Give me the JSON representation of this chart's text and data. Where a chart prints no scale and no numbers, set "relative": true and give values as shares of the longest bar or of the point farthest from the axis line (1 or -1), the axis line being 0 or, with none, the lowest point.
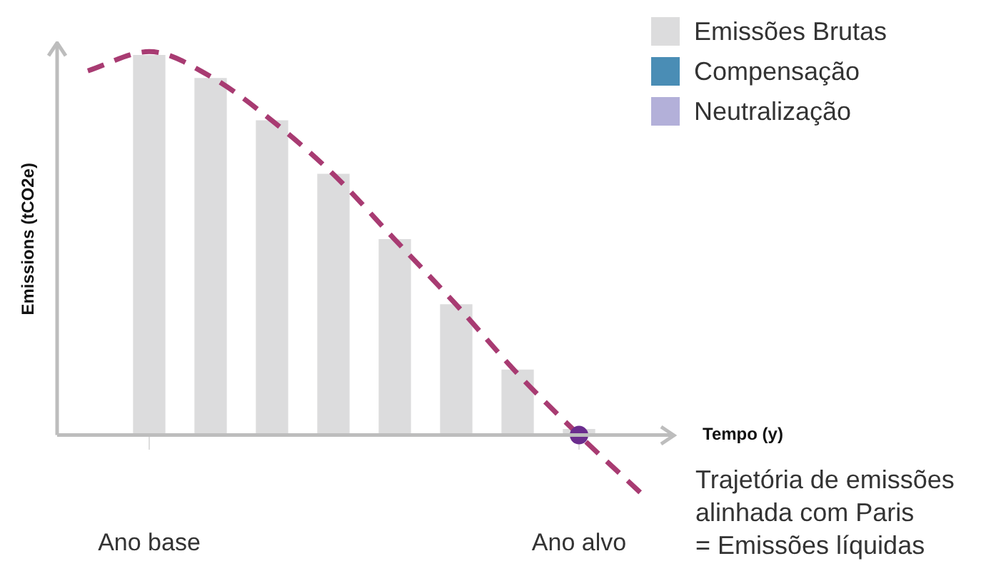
{
  "chart_data": {
    "type": "bar",
    "relative": true,
    "ylabel": "Emissions (tCO2e)",
    "xlabel": "Tempo (y)",
    "categories": [
      null,
      "Ano base",
      null,
      null,
      null,
      null,
      null,
      null,
      "Ano alvo",
      null
    ],
    "legend": "top right",
    "grid": false,
    "series": [
      {
        "name": "Emissões Brutas",
        "color": "#dcdcdd",
        "values": [
          null,
          0.99,
          0.93,
          0.82,
          0.68,
          0.51,
          0.34,
          0.17,
          0.015,
          null
        ]
      },
      {
        "name": "Compensação",
        "color": "#4a8db5",
        "values": [
          null,
          null,
          null,
          null,
          null,
          null,
          null,
          null,
          null,
          null
        ]
      },
      {
        "name": "Neutralização",
        "color": "#b3b0d9",
        "values": [
          null,
          null,
          null,
          null,
          null,
          null,
          null,
          null,
          null,
          null
        ]
      },
      {
        "type": "line",
        "color": "#a83b72",
        "line_style": "dashed",
        "marker": "none",
        "values": [
          0.95,
          1,
          0.935,
          0.82,
          0.68,
          0.51,
          0.34,
          0.16,
          0,
          -0.15
        ]
      },
      {
        "type": "scatter",
        "color": "#6b2d8e",
        "marker": "circle",
        "values": [
          null,
          null,
          null,
          null,
          null,
          null,
          null,
          null,
          0,
          null
        ]
      }
    ],
    "annotations": [
      "Trajetória de emissões alinhada com Paris = Emissões líquidas"
    ]
  }
}
